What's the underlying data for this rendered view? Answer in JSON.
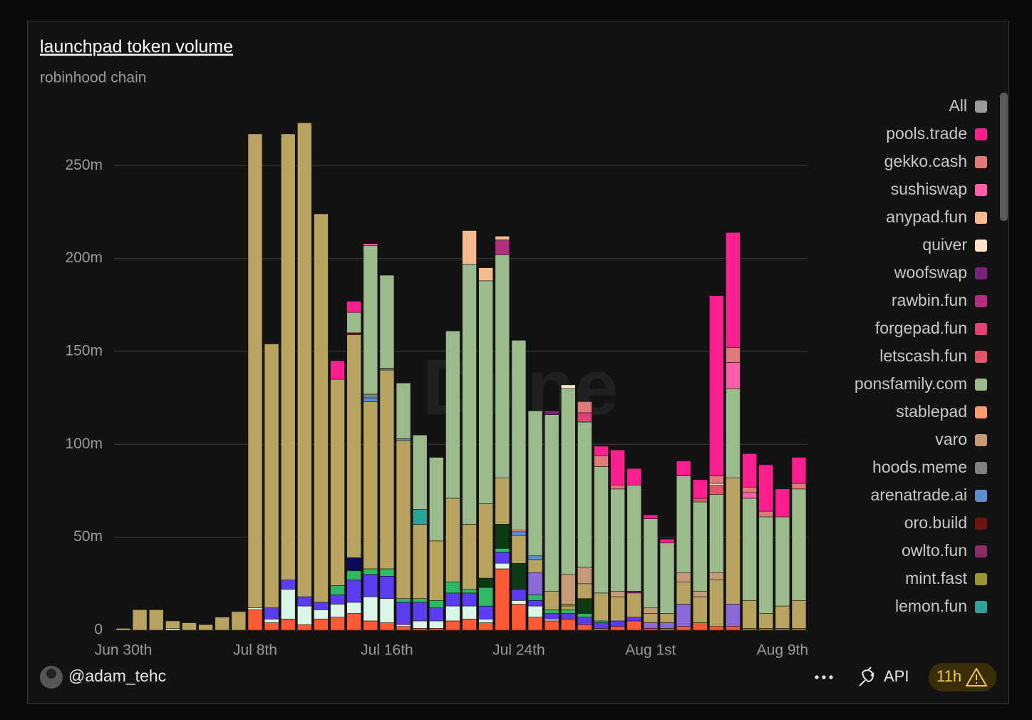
{
  "chart_data": {
    "type": "stacked_bar",
    "title": "launchpad token volume",
    "subtitle": "robinhood chain",
    "watermark": "Dune",
    "legend_all": "All",
    "author": "@adam_tehc",
    "api_label": "API",
    "age_label": "11h",
    "categories": [
      "Jun 30th",
      null,
      null,
      null,
      null,
      null,
      null,
      null,
      "Jul 8th",
      null,
      null,
      null,
      null,
      null,
      null,
      null,
      "Jul 16th",
      null,
      null,
      null,
      null,
      null,
      null,
      null,
      "Jul 24th",
      null,
      null,
      null,
      null,
      null,
      null,
      null,
      "Aug 1st",
      null,
      null,
      null,
      null,
      null,
      null,
      null,
      "Aug 9th",
      null
    ],
    "ylim": [
      0,
      280
    ],
    "yticks": [
      0,
      {
        "value": 50,
        "label": "50m"
      },
      {
        "value": 100,
        "label": "100m"
      },
      {
        "value": 150,
        "label": "150m"
      },
      {
        "value": 200,
        "label": "200m"
      },
      {
        "value": 250,
        "label": "250m"
      }
    ],
    "grid": true,
    "series": [
      {
        "name": "pools.trade",
        "color": "#ff1f8e",
        "values": [
          0,
          0,
          0,
          0,
          0,
          0,
          0,
          0,
          0,
          0,
          0,
          0,
          0,
          10,
          6,
          0,
          0,
          0,
          0,
          0,
          0,
          0,
          0,
          0,
          0,
          0,
          0,
          0,
          0,
          5,
          19,
          9,
          2,
          2,
          8,
          10,
          97,
          62,
          18,
          25,
          15,
          14
        ]
      },
      {
        "name": "gekko.cash",
        "color": "#e07a7a",
        "values": [
          0,
          0,
          0,
          0,
          0,
          0,
          0,
          0,
          0,
          0,
          0,
          0,
          0,
          0,
          0,
          0,
          0,
          0,
          0,
          0,
          0,
          0,
          0,
          0,
          0,
          0,
          0,
          0,
          6,
          6,
          2,
          0,
          0,
          0,
          0,
          0,
          4,
          8,
          3,
          3,
          0,
          3
        ]
      },
      {
        "name": "sushiswap",
        "color": "#ff5fa8",
        "values": [
          0,
          0,
          0,
          0,
          0,
          0,
          0,
          0,
          0,
          0,
          0,
          0,
          0,
          0,
          0,
          1,
          0,
          0,
          0,
          0,
          0,
          0,
          0,
          0,
          0,
          0,
          0,
          0,
          0,
          0,
          0,
          0,
          0,
          0,
          0,
          0,
          0,
          14,
          3,
          0,
          0,
          0
        ]
      },
      {
        "name": "anypad.fun",
        "color": "#f7b98e",
        "values": [
          0,
          0,
          0,
          0,
          0,
          0,
          0,
          0,
          0,
          0,
          0,
          0,
          0,
          0,
          0,
          0,
          0,
          0,
          0,
          0,
          0,
          18,
          7,
          2,
          0,
          0,
          0,
          0,
          0,
          0,
          0,
          0,
          0,
          0,
          0,
          0,
          0,
          0,
          0,
          0,
          0,
          0
        ]
      },
      {
        "name": "quiver",
        "color": "#ffe3c6",
        "values": [
          0,
          0,
          0,
          0,
          0,
          0,
          0,
          0,
          0,
          0,
          0,
          0,
          0,
          0,
          0,
          0,
          0,
          0,
          0,
          0,
          0,
          0,
          0,
          0,
          0,
          0,
          0,
          2,
          0,
          0,
          0,
          0,
          0,
          0,
          0,
          0,
          1,
          0,
          0,
          0,
          0,
          0
        ]
      },
      {
        "name": "woofswap",
        "color": "#7a2478",
        "values": [
          0,
          0,
          0,
          0,
          0,
          0,
          0,
          0,
          0,
          0,
          0,
          0,
          0,
          0,
          0,
          0,
          0,
          0,
          0,
          0,
          0,
          0,
          0,
          0,
          0,
          0,
          2,
          0,
          0,
          0,
          0,
          0,
          0,
          0,
          0,
          0,
          0,
          0,
          0,
          0,
          0,
          0
        ]
      },
      {
        "name": "rawbin.fun",
        "color": "#b0307e",
        "values": [
          0,
          0,
          0,
          0,
          0,
          0,
          0,
          0,
          0,
          0,
          0,
          0,
          0,
          0,
          0,
          0,
          0,
          0,
          0,
          0,
          0,
          0,
          0,
          8,
          0,
          0,
          0,
          0,
          0,
          0,
          0,
          0,
          0,
          0,
          0,
          0,
          0,
          0,
          0,
          0,
          0,
          0
        ]
      },
      {
        "name": "forgepad.fun",
        "color": "#e0407a",
        "values": [
          0,
          0,
          0,
          0,
          0,
          0,
          0,
          0,
          0,
          0,
          0,
          0,
          0,
          0,
          0,
          0,
          0,
          0,
          0,
          0,
          0,
          0,
          0,
          0,
          0,
          0,
          0,
          0,
          5,
          0,
          0,
          0,
          0,
          0,
          0,
          0,
          0,
          0,
          0,
          0,
          0,
          0
        ]
      },
      {
        "name": "letscash.fun",
        "color": "#e35468",
        "values": [
          0,
          0,
          0,
          0,
          0,
          0,
          0,
          0,
          0,
          0,
          0,
          0,
          0,
          0,
          0,
          0,
          0,
          0,
          0,
          0,
          0,
          0,
          0,
          0,
          0,
          0,
          0,
          0,
          0,
          0,
          0,
          0,
          0,
          0,
          0,
          2,
          5,
          0,
          0,
          0,
          0,
          0
        ]
      },
      {
        "name": "ponsfamily.com",
        "color": "#9cbb8c",
        "values": [
          0,
          0,
          0,
          0,
          0,
          0,
          0,
          0,
          0,
          0,
          0,
          0,
          0,
          0,
          11,
          80,
          50,
          30,
          40,
          45,
          90,
          140,
          120,
          120,
          102,
          78,
          95,
          100,
          78,
          68,
          55,
          57,
          48,
          38,
          52,
          48,
          42,
          48,
          55,
          52,
          48,
          60
        ]
      },
      {
        "name": "stablepad",
        "color": "#ff9a72",
        "values": [
          0,
          0,
          0,
          0,
          0,
          0,
          0,
          0,
          0,
          0,
          0,
          0,
          0,
          0,
          0,
          0,
          0,
          0,
          0,
          0,
          0,
          0,
          0,
          0,
          1,
          0,
          0,
          0,
          0,
          0,
          0,
          0,
          0,
          0,
          0,
          0,
          0,
          0,
          0,
          0,
          0,
          0
        ]
      },
      {
        "name": "varo",
        "color": "#c49a78",
        "values": [
          0,
          0,
          0,
          0,
          0,
          0,
          0,
          0,
          0,
          0,
          0,
          0,
          0,
          0,
          0,
          0,
          0,
          0,
          0,
          0,
          0,
          0,
          0,
          0,
          0,
          0,
          0,
          16,
          9,
          0,
          3,
          0,
          3,
          0,
          5,
          3,
          4,
          0,
          0,
          0,
          0,
          0
        ]
      },
      {
        "name": "hoods.meme",
        "color": "#7f7f7f",
        "values": [
          0,
          0,
          0,
          0,
          0,
          0,
          0,
          0,
          0,
          0,
          0,
          0,
          0,
          0,
          0,
          2,
          1,
          0,
          0,
          0,
          0,
          0,
          0,
          0,
          0,
          0,
          0,
          0,
          0,
          0,
          0,
          0,
          0,
          0,
          0,
          0,
          0,
          0,
          0,
          0,
          0,
          0
        ]
      },
      {
        "name": "arenatrade.ai",
        "color": "#5b8fd0",
        "values": [
          0,
          0,
          0,
          0,
          0,
          0,
          0,
          0,
          0,
          0,
          0,
          0,
          0,
          0,
          0,
          2,
          0,
          1,
          0,
          0,
          0,
          0,
          0,
          0,
          2,
          2,
          0,
          0,
          0,
          0,
          0,
          0,
          0,
          0,
          0,
          0,
          0,
          0,
          0,
          0,
          0,
          0
        ]
      },
      {
        "name": "oro.build",
        "color": "#6e1410",
        "values": [
          0,
          0,
          0,
          0,
          0,
          0,
          0,
          0,
          0,
          0,
          0,
          0,
          0,
          0,
          1,
          0,
          0,
          0,
          0,
          0,
          0,
          0,
          0,
          0,
          0,
          0,
          0,
          0,
          0,
          0,
          0,
          0,
          0,
          0,
          0,
          0,
          0,
          0,
          0,
          0,
          0,
          0
        ]
      },
      {
        "name": "owlto.fun",
        "color": "#8a2a66",
        "values": [
          0,
          0,
          0,
          0,
          0,
          0,
          0,
          0,
          0,
          0,
          0,
          0,
          0,
          0,
          0,
          0,
          0,
          0,
          0,
          0,
          0,
          0,
          0,
          0,
          0,
          0,
          0,
          0,
          0,
          0,
          0,
          1,
          0,
          0,
          0,
          0,
          0,
          0,
          0,
          0,
          0,
          0
        ]
      },
      {
        "name": "mint.fast",
        "color": "#9a9634",
        "values": [
          0,
          0,
          0,
          0,
          0,
          0,
          0,
          0,
          0,
          0,
          0,
          0,
          0,
          0,
          0,
          0,
          0,
          0,
          0,
          0,
          0,
          0,
          0,
          0,
          0,
          0,
          0,
          1,
          0,
          0,
          0,
          0,
          0,
          0,
          0,
          0,
          0,
          0,
          0,
          0,
          0,
          0
        ]
      },
      {
        "name": "lemon.fun",
        "color": "#2aa39a",
        "values": [
          0,
          0,
          0,
          0,
          0,
          0,
          0,
          0,
          0,
          0,
          0,
          0,
          0,
          0,
          0,
          0,
          0,
          0,
          8,
          0,
          0,
          0,
          0,
          0,
          0,
          0,
          0,
          0,
          0,
          0,
          0,
          0,
          0,
          0,
          0,
          0,
          0,
          0,
          0,
          0,
          0,
          0
        ]
      },
      {
        "color": "#b8a460",
        "values": [
          1,
          11,
          11,
          4,
          4,
          3,
          7,
          10,
          255,
          142,
          240,
          255,
          209,
          111,
          120,
          90,
          107,
          85,
          40,
          32,
          45,
          35,
          40,
          25,
          15,
          7,
          10,
          2,
          8,
          15,
          13,
          13,
          5,
          5,
          12,
          14,
          25,
          68,
          15,
          8,
          12,
          15
        ]
      },
      {
        "color": "#8a6ad8",
        "values": [
          0,
          0,
          0,
          0,
          0,
          0,
          0,
          0,
          0,
          0,
          0,
          0,
          0,
          0,
          0,
          0,
          0,
          0,
          0,
          0,
          0,
          0,
          0,
          0,
          0,
          12,
          0,
          0,
          0,
          0,
          0,
          0,
          3,
          3,
          12,
          0,
          0,
          12,
          0,
          0,
          0,
          0
        ]
      },
      {
        "color": "#0b0b5c",
        "values": [
          0,
          0,
          0,
          0,
          0,
          0,
          0,
          0,
          0,
          0,
          0,
          0,
          0,
          0,
          7,
          0,
          0,
          0,
          0,
          0,
          0,
          0,
          0,
          0,
          0,
          0,
          0,
          0,
          0,
          0,
          0,
          0,
          0,
          0,
          0,
          0,
          0,
          0,
          0,
          0,
          0,
          0
        ]
      },
      {
        "color": "#0c3a12",
        "values": [
          0,
          0,
          0,
          0,
          0,
          0,
          0,
          0,
          0,
          0,
          0,
          0,
          0,
          0,
          0,
          0,
          0,
          0,
          0,
          0,
          0,
          0,
          5,
          13,
          14,
          0,
          0,
          0,
          8,
          0,
          0,
          0,
          0,
          0,
          0,
          0,
          0,
          0,
          0,
          0,
          0,
          0
        ]
      },
      {
        "color": "#2fb865",
        "values": [
          0,
          0,
          0,
          0,
          0,
          0,
          0,
          0,
          0,
          0,
          0,
          0,
          0,
          5,
          5,
          3,
          4,
          2,
          2,
          4,
          6,
          2,
          10,
          2,
          0,
          3,
          2,
          2,
          2,
          1,
          0,
          0,
          0,
          0,
          0,
          0,
          0,
          0,
          0,
          0,
          0,
          0
        ]
      },
      {
        "color": "#5b3cf0",
        "values": [
          0,
          0,
          0,
          0,
          0,
          0,
          0,
          0,
          0,
          6,
          5,
          5,
          4,
          5,
          12,
          12,
          12,
          12,
          10,
          7,
          7,
          7,
          7,
          6,
          6,
          3,
          3,
          3,
          4,
          3,
          3,
          2,
          0,
          0,
          0,
          0,
          0,
          0,
          0,
          0,
          0,
          0
        ]
      },
      {
        "color": "#d9f5e6",
        "values": [
          0,
          0,
          0,
          1,
          0,
          0,
          0,
          0,
          1,
          2,
          16,
          10,
          5,
          7,
          6,
          13,
          13,
          1,
          4,
          4,
          8,
          7,
          2,
          3,
          2,
          6,
          1,
          0,
          0,
          0,
          0,
          0,
          0,
          0,
          0,
          0,
          0,
          0,
          0,
          0,
          0,
          0
        ]
      },
      {
        "color": "#ff5a36",
        "values": [
          0,
          0,
          0,
          0,
          0,
          0,
          0,
          0,
          11,
          4,
          6,
          3,
          6,
          7,
          9,
          5,
          4,
          2,
          1,
          1,
          5,
          6,
          4,
          33,
          14,
          7,
          5,
          6,
          3,
          1,
          2,
          5,
          1,
          1,
          2,
          4,
          2,
          2,
          1,
          1,
          1,
          1
        ]
      }
    ]
  }
}
